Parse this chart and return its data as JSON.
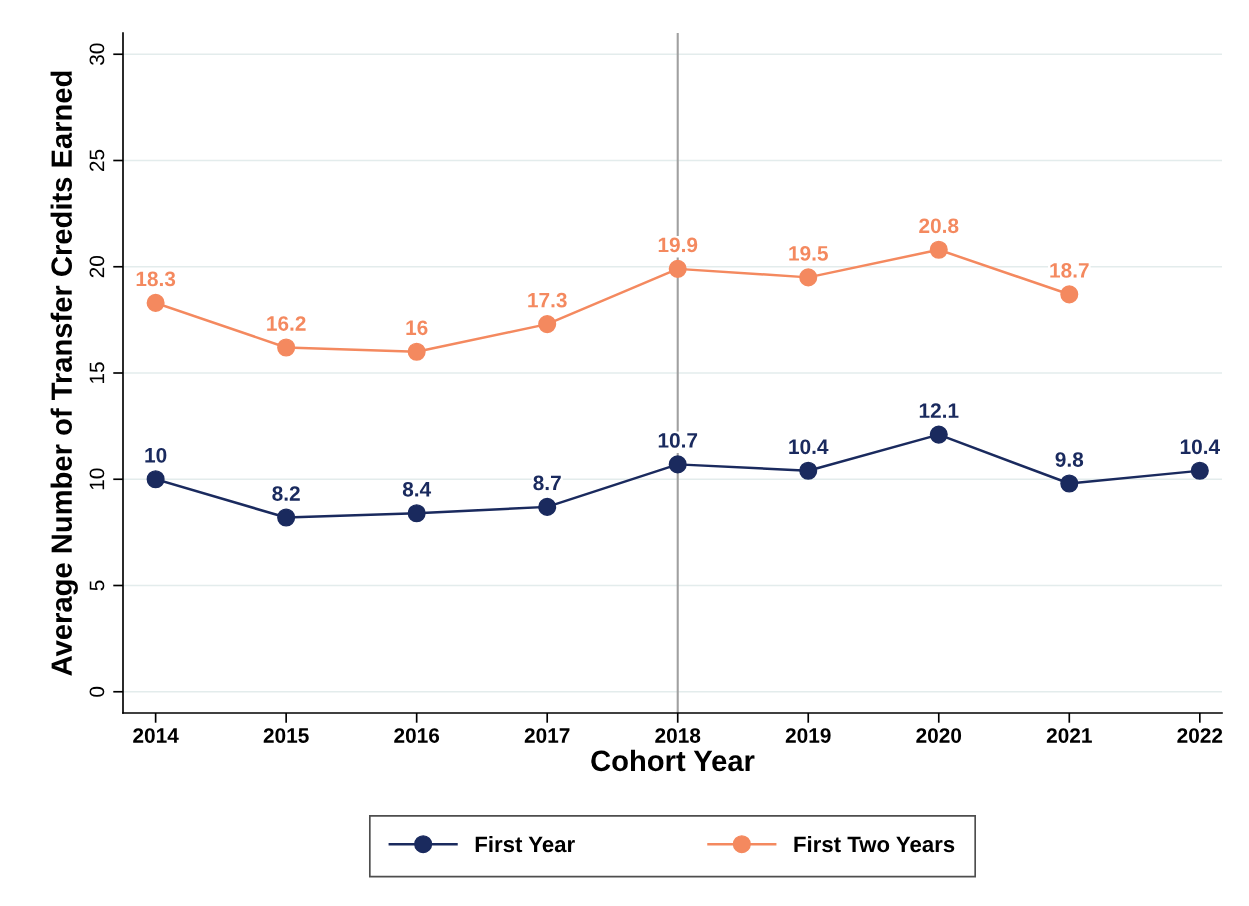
{
  "chart_data": {
    "type": "line",
    "xlabel": "Cohort Year",
    "ylabel": "Average Number of Transfer Credits Earned",
    "x": [
      2014,
      2015,
      2016,
      2017,
      2018,
      2019,
      2020,
      2021,
      2022
    ],
    "series": [
      {
        "name": "First Year",
        "color": "#1a2a5e",
        "values": [
          10,
          8.2,
          8.4,
          8.7,
          10.7,
          10.4,
          12.1,
          9.8,
          10.4
        ]
      },
      {
        "name": "First Two Years",
        "color": "#f4895f",
        "values": [
          18.3,
          16.2,
          16,
          17.3,
          19.9,
          19.5,
          20.8,
          18.7,
          null
        ]
      }
    ],
    "xlim": [
      2013.75,
      2022.17
    ],
    "xticks": [
      2014,
      2015,
      2016,
      2017,
      2018,
      2019,
      2020,
      2021,
      2022
    ],
    "ylim": [
      -1,
      31
    ],
    "yticks": [
      0,
      5,
      10,
      15,
      20,
      25,
      30
    ],
    "ref_lines": [
      {
        "axis": "x",
        "value": 2018,
        "color": "#a0a0a0"
      }
    ],
    "data_labels": true,
    "grid": "y",
    "legend": "bottom",
    "marker": "circle",
    "line_style": "solid"
  }
}
